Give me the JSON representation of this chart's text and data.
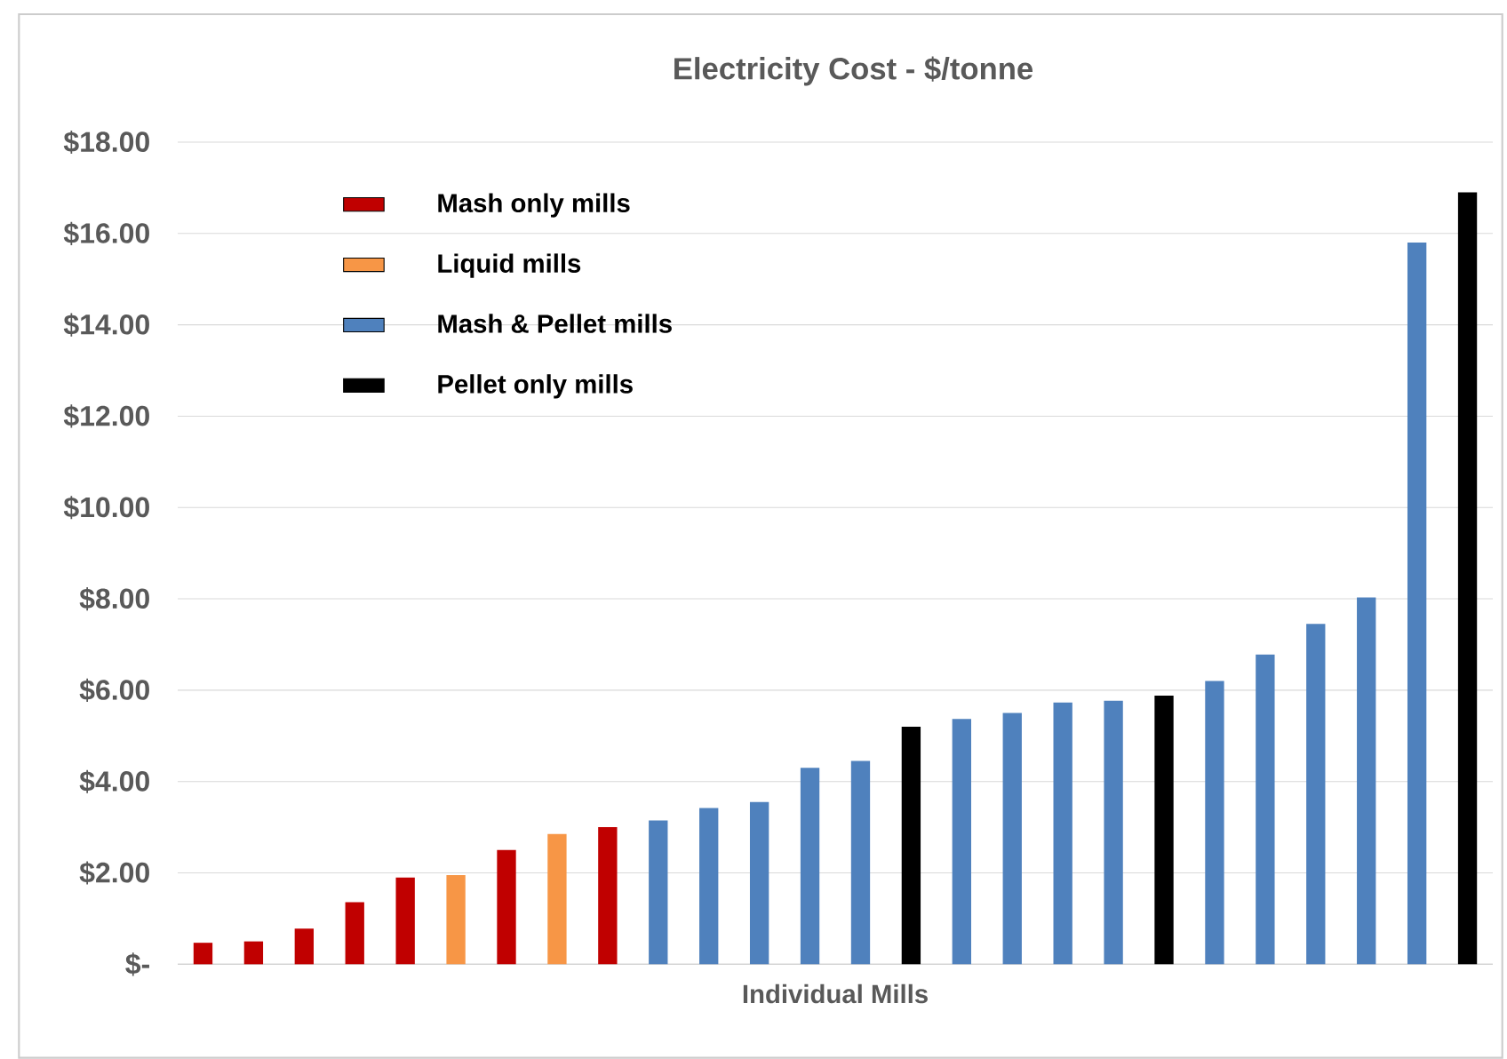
{
  "chart_data": {
    "type": "bar",
    "title": "Electricity Cost - $/tonne",
    "xlabel": "Individual Mills",
    "categories": [
      null,
      null,
      null,
      null,
      null,
      null,
      null,
      null,
      null,
      null,
      null,
      null,
      null,
      null,
      null,
      null,
      null,
      null,
      null,
      null,
      null,
      null,
      null,
      null,
      null,
      null
    ],
    "series": [
      {
        "name": "Mash only mills",
        "color": "#c00000",
        "values": [
          0.47,
          0.5,
          0.78,
          1.36,
          1.9,
          null,
          2.5,
          null,
          3.0,
          null,
          null,
          null,
          null,
          null,
          null,
          null,
          null,
          null,
          null,
          null,
          null,
          null,
          null,
          null,
          null,
          null
        ]
      },
      {
        "name": "Liquid mills",
        "color": "#f79646",
        "values": [
          null,
          null,
          null,
          null,
          null,
          1.95,
          null,
          2.85,
          null,
          null,
          null,
          null,
          null,
          null,
          null,
          null,
          null,
          null,
          null,
          null,
          null,
          null,
          null,
          null,
          null,
          null
        ]
      },
      {
        "name": "Mash & Pellet mills",
        "color": "#4f81bd",
        "values": [
          null,
          null,
          null,
          null,
          null,
          null,
          null,
          null,
          null,
          3.15,
          3.42,
          3.55,
          4.3,
          4.45,
          null,
          5.37,
          5.5,
          5.73,
          5.77,
          null,
          6.2,
          6.78,
          7.45,
          8.03,
          15.8,
          null
        ]
      },
      {
        "name": "Pellet only mills",
        "color": "#000000",
        "values": [
          null,
          null,
          null,
          null,
          null,
          null,
          null,
          null,
          null,
          null,
          null,
          null,
          null,
          null,
          5.2,
          null,
          null,
          null,
          null,
          5.88,
          null,
          null,
          null,
          null,
          null,
          16.9
        ]
      }
    ],
    "ylim": [
      0,
      18
    ],
    "yticks": [
      {
        "value": 0,
        "label": "$-"
      },
      {
        "value": 2,
        "label": "$2.00"
      },
      {
        "value": 4,
        "label": "$4.00"
      },
      {
        "value": 6,
        "label": "$6.00"
      },
      {
        "value": 8,
        "label": "$8.00"
      },
      {
        "value": 10,
        "label": "$10.00"
      },
      {
        "value": 12,
        "label": "$12.00"
      },
      {
        "value": 14,
        "label": "$14.00"
      },
      {
        "value": 16,
        "label": "$16.00"
      },
      {
        "value": 18,
        "label": "$18.00"
      }
    ],
    "grid": "y",
    "legend": "top left"
  }
}
